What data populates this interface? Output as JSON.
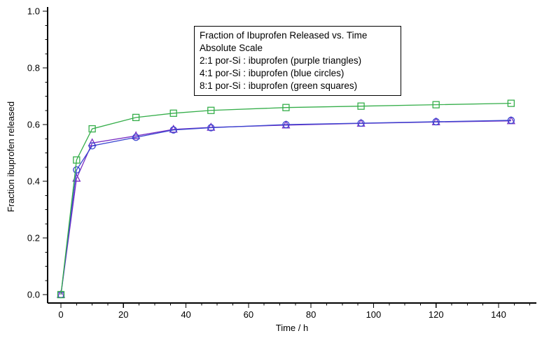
{
  "chart_data": {
    "type": "line",
    "title": "Fraction of Ibuprofen Released vs. Time",
    "subtitle": "Absolute Scale",
    "xlabel": "Time / h",
    "ylabel": "Fraction ibuprofen released",
    "xlim": [
      -4,
      152
    ],
    "ylim": [
      0.0,
      1.0
    ],
    "x_ticks": [
      0,
      20,
      40,
      60,
      80,
      100,
      120,
      140
    ],
    "y_ticks": [
      0.0,
      0.2,
      0.4,
      0.6,
      0.8,
      1.0
    ],
    "grid": false,
    "legend_position": "top-center-inside-box",
    "legend_lines": [
      "Fraction of Ibuprofen Released vs. Time",
      "Absolute Scale",
      "2:1 por-Si : ibuprofen (purple triangles)",
      "4:1 por-Si : ibuprofen (blue circles)",
      "8:1 por-Si : ibuprofen (green squares)"
    ],
    "x": [
      0,
      5,
      10,
      24,
      36,
      48,
      72,
      96,
      120,
      144
    ],
    "series": [
      {
        "name": "2:1 por-Si : ibuprofen",
        "marker": "triangle",
        "color": "#7a2fc4",
        "values": [
          0.0,
          0.41,
          0.535,
          0.56,
          0.583,
          0.59,
          0.598,
          0.604,
          0.609,
          0.613
        ]
      },
      {
        "name": "4:1 por-Si : ibuprofen",
        "marker": "circle",
        "color": "#3a45d0",
        "values": [
          0.0,
          0.44,
          0.525,
          0.555,
          0.581,
          0.589,
          0.6,
          0.605,
          0.61,
          0.615
        ]
      },
      {
        "name": "8:1 por-Si : ibuprofen",
        "marker": "square",
        "color": "#35ae4a",
        "values": [
          0.0,
          0.475,
          0.585,
          0.625,
          0.64,
          0.65,
          0.66,
          0.665,
          0.67,
          0.675
        ]
      }
    ],
    "axis_color": "#000000",
    "background": "#ffffff"
  }
}
